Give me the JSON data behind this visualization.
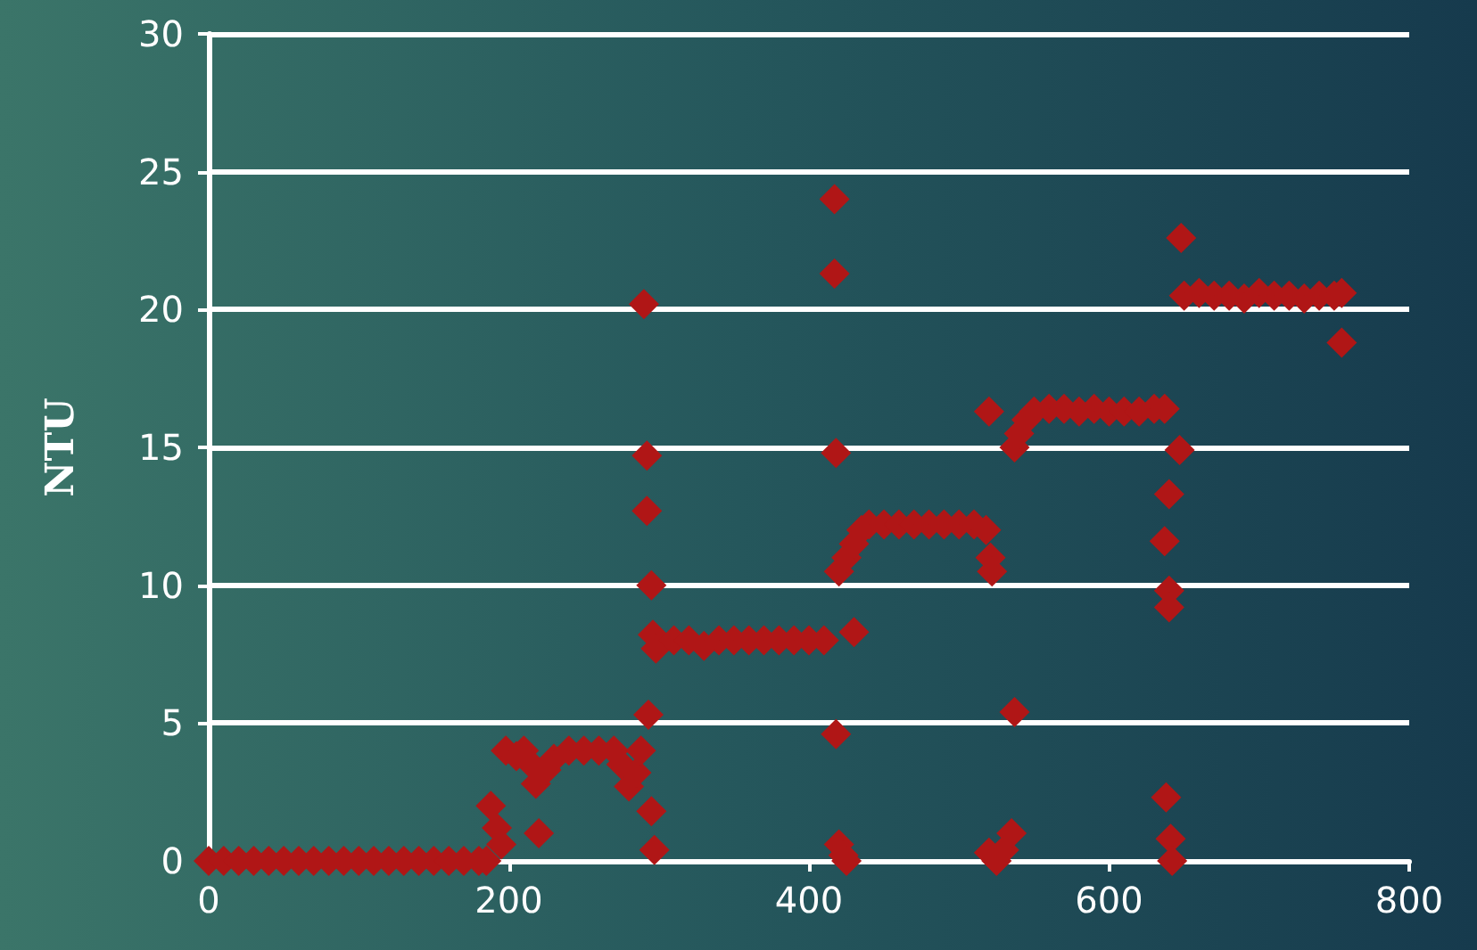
{
  "chart_data": {
    "type": "scatter",
    "ylabel": "NTU",
    "xlim": [
      0,
      800
    ],
    "xticks": [
      0,
      200,
      400,
      600,
      800
    ],
    "ylim": [
      0,
      30
    ],
    "yticks": [
      0,
      5,
      10,
      15,
      20,
      25,
      30
    ],
    "grid": "y",
    "marker": "diamond",
    "series": [
      {
        "color": "#b01616",
        "x": [
          0,
          10,
          20,
          30,
          40,
          50,
          60,
          70,
          80,
          90,
          100,
          110,
          120,
          130,
          140,
          150,
          160,
          170,
          180,
          185,
          188,
          192,
          195,
          198,
          205,
          210,
          215,
          218,
          220,
          225,
          230,
          240,
          250,
          260,
          270,
          275,
          280,
          285,
          288,
          290,
          292,
          292,
          293,
          295,
          295,
          297,
          296,
          298,
          310,
          320,
          330,
          340,
          350,
          360,
          370,
          380,
          390,
          400,
          410,
          417,
          417,
          418,
          420,
          418,
          420,
          423,
          425,
          430,
          425,
          430,
          435,
          440,
          450,
          460,
          470,
          480,
          490,
          500,
          510,
          518,
          520,
          521,
          522,
          520,
          525,
          530,
          535,
          537,
          537,
          540,
          545,
          550,
          560,
          570,
          580,
          590,
          600,
          610,
          620,
          630,
          637,
          647,
          640,
          637,
          640,
          640,
          638,
          641,
          642,
          648,
          650,
          660,
          670,
          680,
          690,
          700,
          710,
          720,
          730,
          740,
          750,
          755,
          755
        ],
        "values": [
          0,
          0,
          0,
          0,
          0,
          0,
          0,
          0,
          0,
          0,
          0,
          0,
          0,
          0,
          0,
          0,
          0,
          0,
          0,
          0,
          2,
          1.2,
          0.6,
          4,
          3.8,
          4,
          3.5,
          2.8,
          1,
          3.3,
          3.7,
          4,
          4,
          4,
          4,
          3.5,
          2.7,
          3.2,
          4,
          20.2,
          14.7,
          12.7,
          5.3,
          10,
          1.8,
          0.4,
          8.2,
          7.7,
          8,
          8,
          7.8,
          8,
          8,
          8,
          8,
          8,
          8,
          8,
          8,
          24,
          21.3,
          14.8,
          10.5,
          4.6,
          0.6,
          0.2,
          0,
          8.3,
          11,
          11.5,
          12,
          12.2,
          12.2,
          12.2,
          12.2,
          12.2,
          12.2,
          12.2,
          12.2,
          12,
          16.3,
          11,
          10.5,
          0.3,
          0,
          0.4,
          1,
          5.4,
          15,
          15.5,
          16,
          16.3,
          16.4,
          16.4,
          16.3,
          16.4,
          16.3,
          16.3,
          16.3,
          16.4,
          16.4,
          14.9,
          13.3,
          11.6,
          9.8,
          9.2,
          2.3,
          0.8,
          0,
          22.6,
          20.5,
          20.6,
          20.5,
          20.5,
          20.4,
          20.6,
          20.5,
          20.5,
          20.4,
          20.5,
          20.5,
          20.6,
          18.8
        ]
      }
    ]
  }
}
